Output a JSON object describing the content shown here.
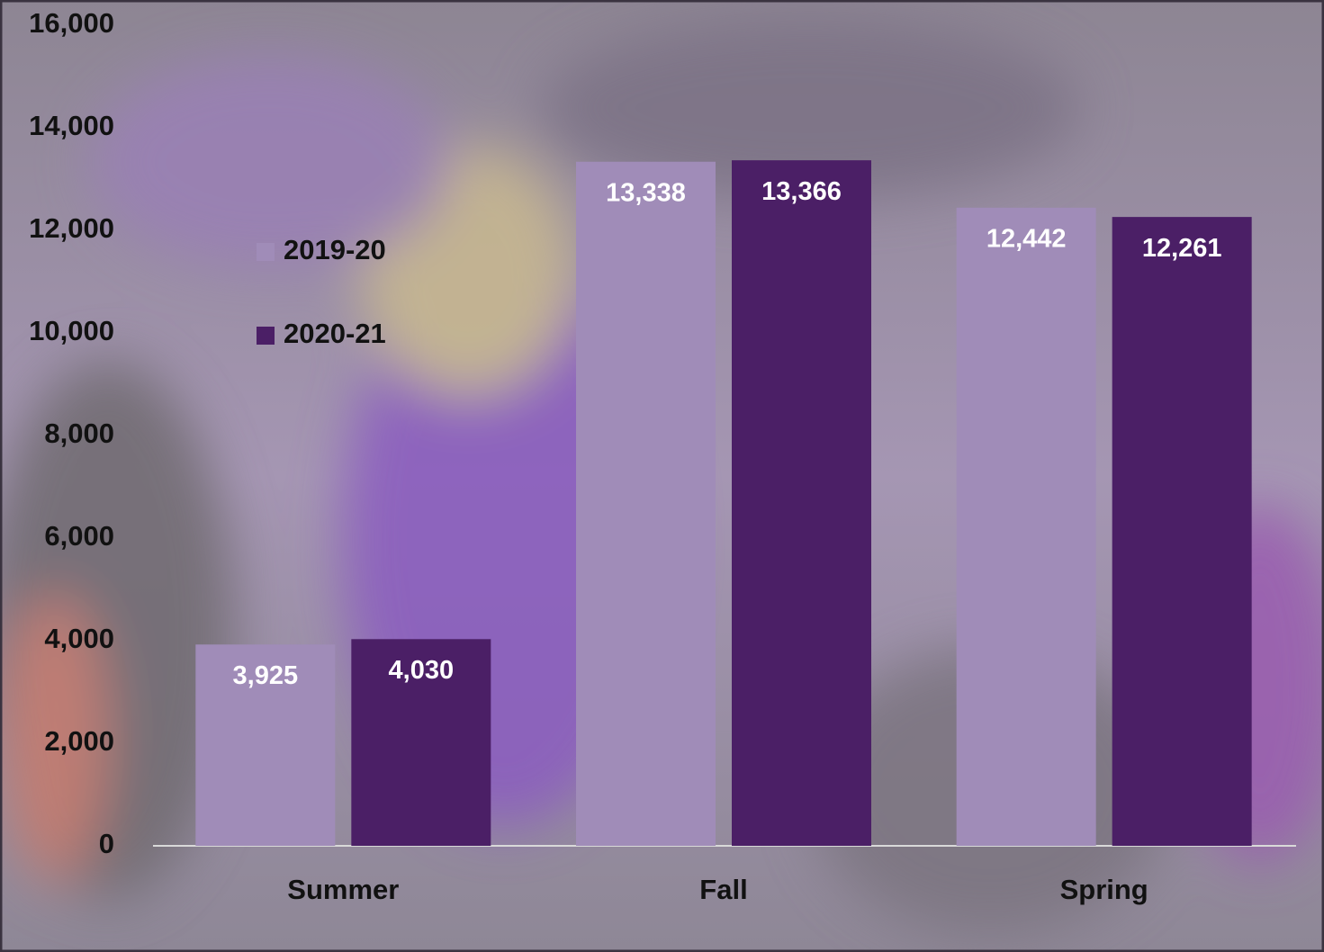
{
  "chart_data": {
    "type": "bar",
    "categories": [
      "Summer",
      "Fall",
      "Spring"
    ],
    "series": [
      {
        "name": "2019-20",
        "color": "#a08cb8",
        "values": [
          3925,
          13338,
          12442
        ],
        "value_labels": [
          "3,925",
          "13,338",
          "12,442"
        ]
      },
      {
        "name": "2020-21",
        "color": "#4b1f66",
        "values": [
          4030,
          13366,
          12261
        ],
        "value_labels": [
          "4,030",
          "13,366",
          "12,261"
        ]
      }
    ],
    "ylim": [
      0,
      16000
    ],
    "yticks": [
      0,
      {
        "value": 2000,
        "label": "2,000"
      },
      {
        "value": 4000,
        "label": "4,000"
      },
      {
        "value": 6000,
        "label": "6,000"
      },
      {
        "value": 8000,
        "label": "8,000"
      },
      {
        "value": 10000,
        "label": "10,000"
      },
      {
        "value": 12000,
        "label": "12,000"
      },
      {
        "value": 14000,
        "label": "14,000"
      },
      {
        "value": 16000,
        "label": "16,000"
      }
    ],
    "grid": false,
    "legend": "left"
  }
}
